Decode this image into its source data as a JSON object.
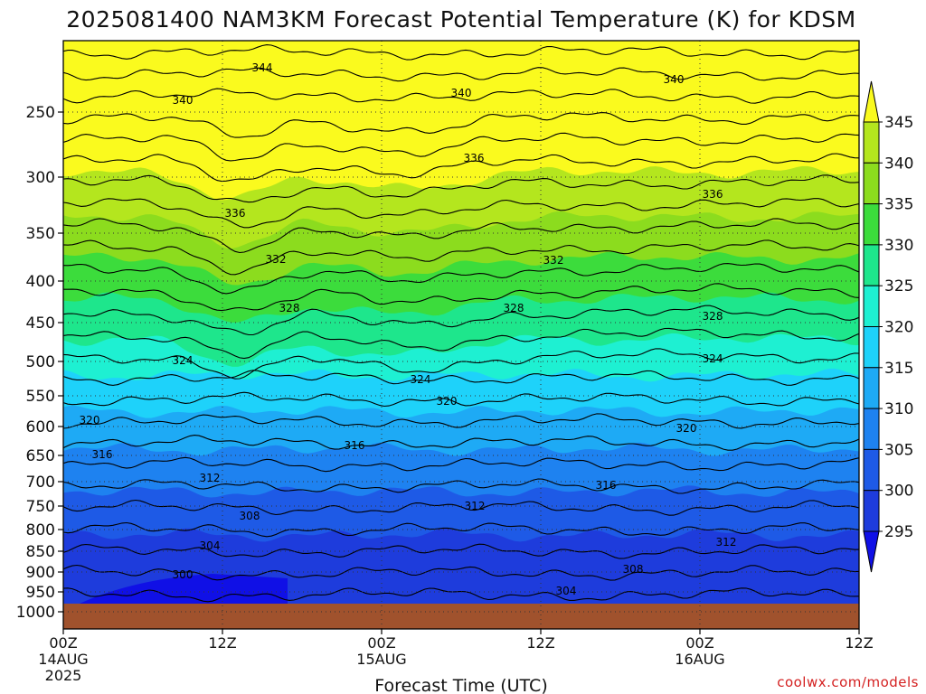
{
  "chart_data": {
    "type": "heatmap",
    "title": "2025081400 NAM3KM Forecast Potential Temperature (K) for KDSM",
    "xlabel": "Forecast Time (UTC)",
    "ylabel": "",
    "y_scale": "log-pressure",
    "y_ticks": [
      "250",
      "300",
      "350",
      "400",
      "450",
      "500",
      "550",
      "600",
      "650",
      "700",
      "750",
      "800",
      "850",
      "900",
      "950",
      "1000"
    ],
    "x_ticks": [
      {
        "label": "00Z",
        "sub": "14AUG",
        "sub2": "2025"
      },
      {
        "label": "12Z",
        "sub": "",
        "sub2": ""
      },
      {
        "label": "00Z",
        "sub": "15AUG",
        "sub2": ""
      },
      {
        "label": "12Z",
        "sub": "",
        "sub2": ""
      },
      {
        "label": "00Z",
        "sub": "16AUG",
        "sub2": ""
      },
      {
        "label": "12Z",
        "sub": "",
        "sub2": ""
      }
    ],
    "colorbar": {
      "levels": [
        295,
        300,
        305,
        310,
        315,
        320,
        325,
        330,
        335,
        340,
        345
      ],
      "colors": [
        "#1010e6",
        "#1e3cdc",
        "#1e5ae6",
        "#1e82f0",
        "#1eaaf5",
        "#1ed2fa",
        "#1ef0d2",
        "#1ee68c",
        "#3cdc3c",
        "#8cdc1e",
        "#b4e61e",
        "#fafa1e"
      ],
      "labels": [
        "345",
        "340",
        "335",
        "330",
        "325",
        "320",
        "315",
        "310",
        "305",
        "300",
        "295"
      ]
    },
    "contour_labels": [
      {
        "value": "344"
      },
      {
        "value": "340"
      },
      {
        "value": "340"
      },
      {
        "value": "340"
      },
      {
        "value": "336"
      },
      {
        "value": "336"
      },
      {
        "value": "336"
      },
      {
        "value": "332"
      },
      {
        "value": "332"
      },
      {
        "value": "328"
      },
      {
        "value": "328"
      },
      {
        "value": "328"
      },
      {
        "value": "324"
      },
      {
        "value": "324"
      },
      {
        "value": "324"
      },
      {
        "value": "320"
      },
      {
        "value": "320"
      },
      {
        "value": "320"
      },
      {
        "value": "316"
      },
      {
        "value": "316"
      },
      {
        "value": "316"
      },
      {
        "value": "312"
      },
      {
        "value": "312"
      },
      {
        "value": "312"
      },
      {
        "value": "308"
      },
      {
        "value": "308"
      },
      {
        "value": "304"
      },
      {
        "value": "304"
      },
      {
        "value": "300"
      }
    ],
    "grid": true
  },
  "credit": "coolwx.com/models"
}
